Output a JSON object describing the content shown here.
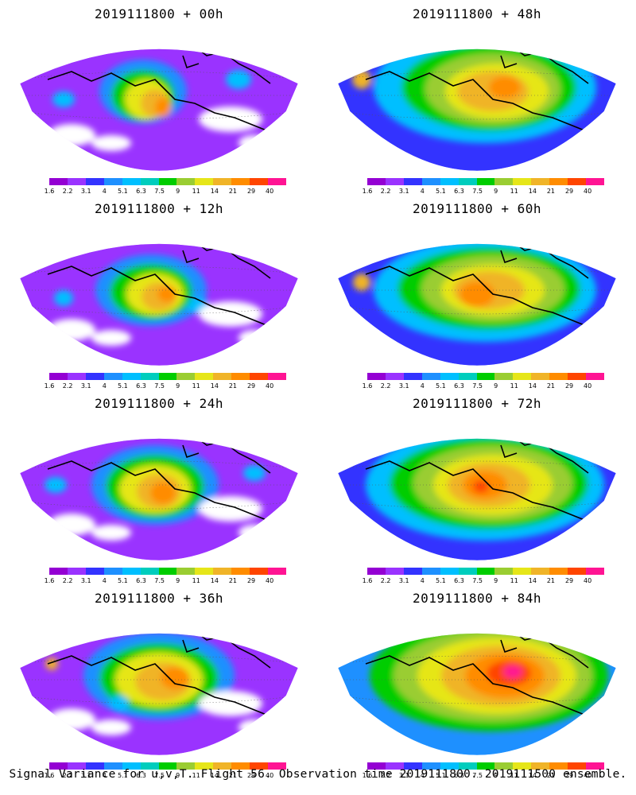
{
  "panels": [
    {
      "title": "2019111800 + 00h"
    },
    {
      "title": "2019111800 + 48h"
    },
    {
      "title": "2019111800 + 12h"
    },
    {
      "title": "2019111800 + 60h"
    },
    {
      "title": "2019111800 + 24h"
    },
    {
      "title": "2019111800 + 72h"
    },
    {
      "title": "2019111800 + 36h"
    },
    {
      "title": "2019111800 + 84h"
    }
  ],
  "colorbar": {
    "levels": [
      "1.6",
      "2.2",
      "3.1",
      "4",
      "5.1",
      "6.3",
      "7.5",
      "9",
      "11",
      "14",
      "21",
      "29",
      "40"
    ],
    "colors": [
      "#9400d3",
      "#9a33ff",
      "#3333ff",
      "#1e90ff",
      "#00bfff",
      "#00cdbd",
      "#00cd00",
      "#9acd32",
      "#e6e619",
      "#f0b428",
      "#ff8c00",
      "#ff4500",
      "#ff1493"
    ]
  },
  "caption": "Signal Variance for u,v,T. Flight 56. Observation time 2019111800. 2019111500 ensemble."
}
